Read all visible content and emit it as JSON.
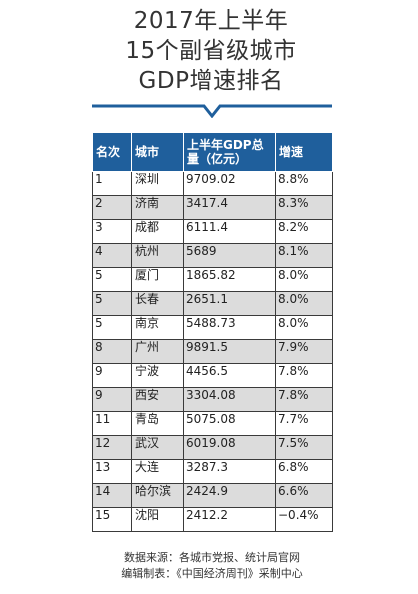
{
  "title": {
    "line1": "2017年上半年",
    "line2": "15个副省级城市",
    "line3": "GDP增速排名"
  },
  "table": {
    "headers": [
      "名次",
      "城市",
      "上半年GDP总量（亿元）",
      "增速"
    ],
    "rows": [
      {
        "rank": "1",
        "city": "深圳",
        "gdp": "9709.02",
        "growth": "8.8%"
      },
      {
        "rank": "2",
        "city": "济南",
        "gdp": "3417.4",
        "growth": "8.3%"
      },
      {
        "rank": "3",
        "city": "成都",
        "gdp": "6111.4",
        "growth": "8.2%"
      },
      {
        "rank": "4",
        "city": "杭州",
        "gdp": "5689",
        "growth": "8.1%"
      },
      {
        "rank": "5",
        "city": "厦门",
        "gdp": "1865.82",
        "growth": "8.0%"
      },
      {
        "rank": "5",
        "city": "长春",
        "gdp": "2651.1",
        "growth": "8.0%"
      },
      {
        "rank": "5",
        "city": "南京",
        "gdp": "5488.73",
        "growth": "8.0%"
      },
      {
        "rank": "8",
        "city": "广州",
        "gdp": "9891.5",
        "growth": "7.9%"
      },
      {
        "rank": "9",
        "city": "宁波",
        "gdp": "4456.5",
        "growth": "7.8%"
      },
      {
        "rank": "9",
        "city": "西安",
        "gdp": "3304.08",
        "growth": "7.8%"
      },
      {
        "rank": "11",
        "city": "青岛",
        "gdp": "5075.08",
        "growth": "7.7%"
      },
      {
        "rank": "12",
        "city": "武汉",
        "gdp": "6019.08",
        "growth": "7.5%"
      },
      {
        "rank": "13",
        "city": "大连",
        "gdp": "3287.3",
        "growth": "6.8%"
      },
      {
        "rank": "14",
        "city": "哈尔滨",
        "gdp": "2424.9",
        "growth": "6.6%"
      },
      {
        "rank": "15",
        "city": "沈阳",
        "gdp": "2412.2",
        "growth": "−0.4%"
      }
    ]
  },
  "source": {
    "line1": "数据来源：各城市党报、统计局官网",
    "line2": "编辑制表：《中国经济周刊》采制中心"
  },
  "colors": {
    "header_bg": "#1f5f9c",
    "shade_row": "#dcdcdc",
    "divider": "#1f5f9c"
  }
}
